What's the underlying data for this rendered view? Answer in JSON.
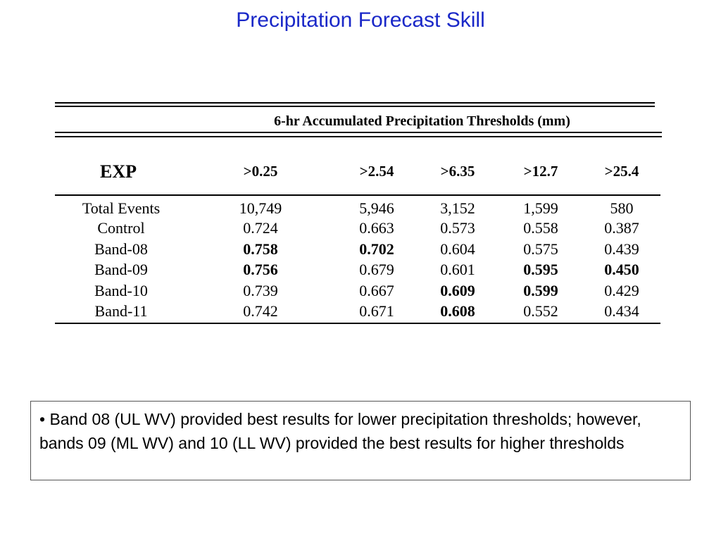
{
  "title": "Precipitation Forecast Skill",
  "table": {
    "caption": "6-hr Accumulated Precipitation Thresholds (mm)",
    "row_header": "EXP",
    "columns": [
      ">0.25",
      ">2.54",
      ">6.35",
      ">12.7",
      ">25.4"
    ],
    "rows": [
      {
        "label": "Total Events",
        "values": [
          "10,749",
          "5,946",
          "3,152",
          "1,599",
          "580"
        ],
        "bold": [
          false,
          false,
          false,
          false,
          false
        ]
      },
      {
        "label": "Control",
        "values": [
          "0.724",
          "0.663",
          "0.573",
          "0.558",
          "0.387"
        ],
        "bold": [
          false,
          false,
          false,
          false,
          false
        ]
      },
      {
        "label": "Band-08",
        "values": [
          "0.758",
          "0.702",
          "0.604",
          "0.575",
          "0.439"
        ],
        "bold": [
          true,
          true,
          false,
          false,
          false
        ]
      },
      {
        "label": "Band-09",
        "values": [
          "0.756",
          "0.679",
          "0.601",
          "0.595",
          "0.450"
        ],
        "bold": [
          true,
          false,
          false,
          true,
          true
        ]
      },
      {
        "label": "Band-10",
        "values": [
          "0.739",
          "0.667",
          "0.609",
          "0.599",
          "0.429"
        ],
        "bold": [
          false,
          false,
          true,
          true,
          false
        ]
      },
      {
        "label": "Band-11",
        "values": [
          "0.742",
          "0.671",
          "0.608",
          "0.552",
          "0.434"
        ],
        "bold": [
          false,
          false,
          true,
          false,
          false
        ]
      }
    ]
  },
  "note": "• Band 08 (UL WV) provided best results for lower precipitation thresholds; however, bands 09 (ML WV) and 10 (LL WV) provided the best results for higher thresholds",
  "colors": {
    "title": "#1a28c8",
    "text": "#000000"
  }
}
